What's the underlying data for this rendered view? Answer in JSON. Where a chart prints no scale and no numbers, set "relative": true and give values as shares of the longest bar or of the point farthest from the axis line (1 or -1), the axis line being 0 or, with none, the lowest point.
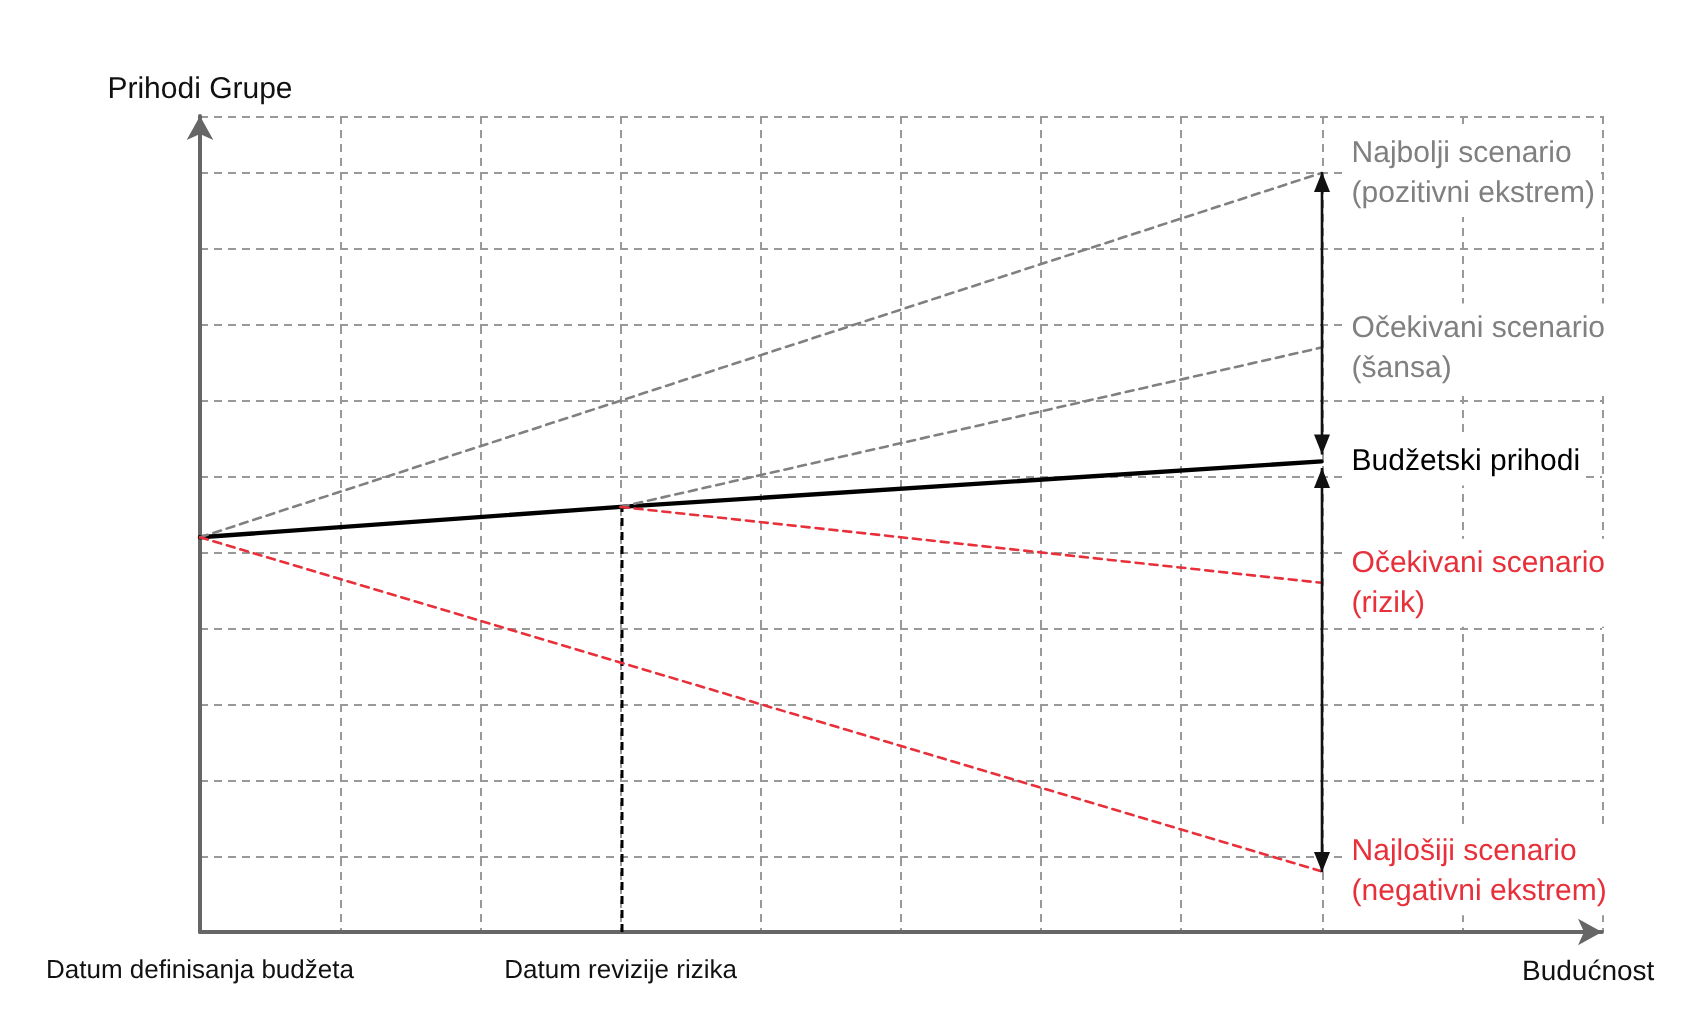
{
  "chart_data": {
    "type": "line",
    "relative": true,
    "ylabel": "Prihodi Grupe",
    "xlabel": "Budućnost",
    "categories": [
      "Datum definisanja budžeta",
      null,
      null,
      "Datum revizije rizika",
      null,
      null,
      null,
      null,
      null,
      null,
      null
    ],
    "series": [
      {
        "name": "Najbolji scenario\n(pozitivni ekstrem)",
        "color": "#808080",
        "line_style": "dashed",
        "values": [
          0.52,
          null,
          null,
          null,
          null,
          null,
          null,
          null,
          1,
          null,
          null
        ]
      },
      {
        "name": "Očekivani scenario\n(šansa)",
        "color": "#808080",
        "line_style": "dashed",
        "values": [
          null,
          null,
          null,
          0.56,
          null,
          null,
          null,
          null,
          0.77,
          null,
          null
        ]
      },
      {
        "name": "Budžetski prihodi",
        "color": "#000000",
        "line_style": "solid",
        "values": [
          0.52,
          null,
          null,
          0.56,
          null,
          null,
          null,
          null,
          0.62,
          null,
          null
        ]
      },
      {
        "name": "Očekivani scenario\n(rizik)",
        "color": "#e8303a",
        "line_style": "dashed",
        "values": [
          null,
          null,
          null,
          0.56,
          null,
          null,
          null,
          null,
          0.46,
          null,
          null
        ]
      },
      {
        "name": "Najlošiji scenario\n(negativni ekstrem)",
        "color": "#e8303a",
        "line_style": "dashed",
        "values": [
          0.52,
          null,
          null,
          null,
          null,
          null,
          null,
          null,
          0.08,
          null,
          null
        ]
      }
    ],
    "ref_lines": [
      {
        "axis": "x",
        "value": "Datum revizije rizika",
        "color": "#000000",
        "line_style": "dashed"
      }
    ],
    "grid": true,
    "legend": false,
    "marker": "none"
  }
}
